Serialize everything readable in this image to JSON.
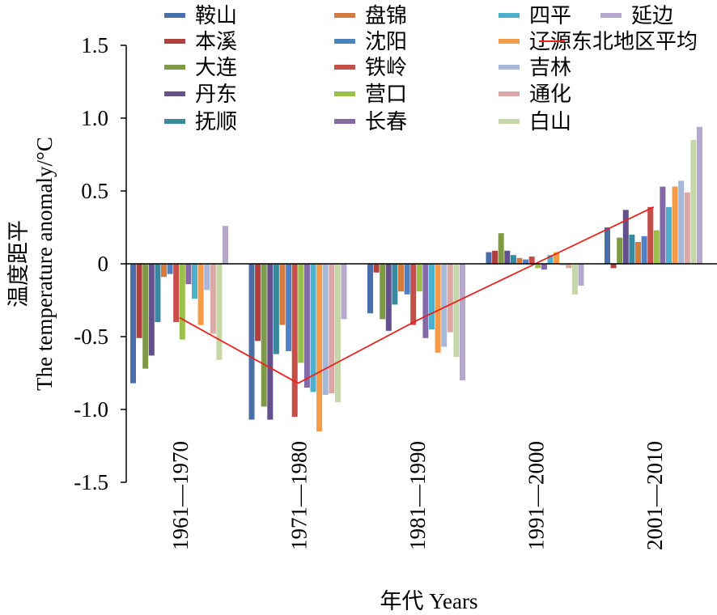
{
  "chart_data": {
    "type": "bar",
    "xlabel": "年代 Years",
    "ylabel_cn": "温度距平",
    "ylabel_en": "The temperature anomaly/°C",
    "ylim": [
      -1.5,
      1.5
    ],
    "yticks": [
      "1.5",
      "1.0",
      "0.5",
      "0",
      "-0.5",
      "-1.0",
      "-1.5"
    ],
    "ytick_values": [
      1.5,
      1.0,
      0.5,
      0,
      -0.5,
      -1.0,
      -1.5
    ],
    "categories": [
      "1961—1970",
      "1971—1980",
      "1981—1990",
      "1991—2000",
      "2001—2010"
    ],
    "legend_position": "top",
    "series": [
      {
        "name": "鞍山",
        "color": "#4a6ea8",
        "values": [
          -0.82,
          -1.07,
          -0.34,
          0.08,
          0.25
        ]
      },
      {
        "name": "本溪",
        "color": "#b0403e",
        "values": [
          -0.51,
          -0.53,
          -0.06,
          0.09,
          -0.03
        ]
      },
      {
        "name": "大连",
        "color": "#7f9a45",
        "values": [
          -0.72,
          -0.98,
          -0.38,
          0.21,
          0.18
        ]
      },
      {
        "name": "丹东",
        "color": "#65508e",
        "values": [
          -0.63,
          -1.07,
          -0.46,
          0.09,
          0.37
        ]
      },
      {
        "name": "抚顺",
        "color": "#36899f",
        "values": [
          -0.4,
          -0.62,
          -0.28,
          0.06,
          0.2
        ]
      },
      {
        "name": "盘锦",
        "color": "#d5793c",
        "values": [
          -0.09,
          -0.42,
          -0.19,
          0.04,
          0.15
        ]
      },
      {
        "name": "沈阳",
        "color": "#4f81c2",
        "values": [
          -0.07,
          -0.6,
          -0.21,
          0.03,
          0.19
        ]
      },
      {
        "name": "铁岭",
        "color": "#c54e4a",
        "values": [
          -0.4,
          -1.05,
          -0.42,
          0.05,
          0.39
        ]
      },
      {
        "name": "营口",
        "color": "#9bc049",
        "values": [
          -0.52,
          -0.68,
          -0.19,
          -0.03,
          0.23
        ]
      },
      {
        "name": "长春",
        "color": "#8568a8",
        "values": [
          -0.14,
          -0.85,
          -0.51,
          -0.04,
          0.53
        ]
      },
      {
        "name": "四平",
        "color": "#4bb0cf",
        "values": [
          -0.24,
          -0.88,
          -0.45,
          0.06,
          0.39
        ]
      },
      {
        "name": "辽源",
        "color": "#f59a46",
        "values": [
          -0.42,
          -1.15,
          -0.61,
          0.08,
          0.53
        ]
      },
      {
        "name": "吉林",
        "color": "#a7b7d8",
        "values": [
          -0.18,
          -0.9,
          -0.57,
          -0.01,
          0.57
        ]
      },
      {
        "name": "通化",
        "color": "#dba8a6",
        "values": [
          -0.48,
          -0.89,
          -0.47,
          -0.03,
          0.49
        ]
      },
      {
        "name": "白山",
        "color": "#c5d7a8",
        "values": [
          -0.66,
          -0.95,
          -0.64,
          -0.21,
          0.85
        ]
      },
      {
        "name": "延边",
        "color": "#b6a8cc",
        "values": [
          0.26,
          -0.38,
          -0.8,
          -0.15,
          0.94
        ]
      }
    ],
    "average_line": {
      "name": "东北地区平均",
      "color": "#e8231f",
      "values": [
        -0.37,
        -0.82,
        -0.39,
        0.0,
        0.39
      ]
    }
  }
}
